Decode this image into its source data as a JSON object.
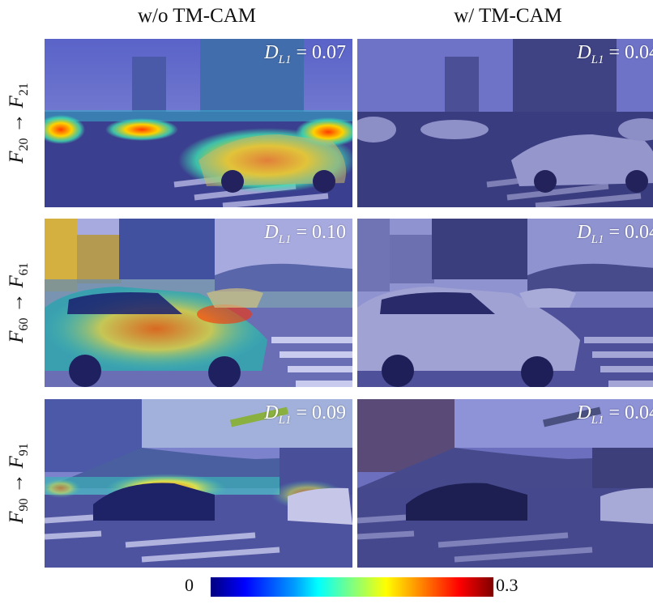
{
  "columns": [
    "w/o TM-CAM",
    "w/ TM-CAM"
  ],
  "rows": [
    {
      "from_base": "F",
      "from_sub": "20",
      "to_base": "F",
      "to_sub": "21",
      "without": "0.07",
      "with": "0.04"
    },
    {
      "from_base": "F",
      "from_sub": "60",
      "to_base": "F",
      "to_sub": "61",
      "without": "0.10",
      "with": "0.04"
    },
    {
      "from_base": "F",
      "from_sub": "90",
      "to_base": "F",
      "to_sub": "91",
      "without": "0.09",
      "with": "0.04"
    }
  ],
  "metric": {
    "symbol": "D",
    "subscript": "L1",
    "equals": "= "
  },
  "arrow": "→",
  "colorbar": {
    "min": "0",
    "max": "0.3"
  }
}
